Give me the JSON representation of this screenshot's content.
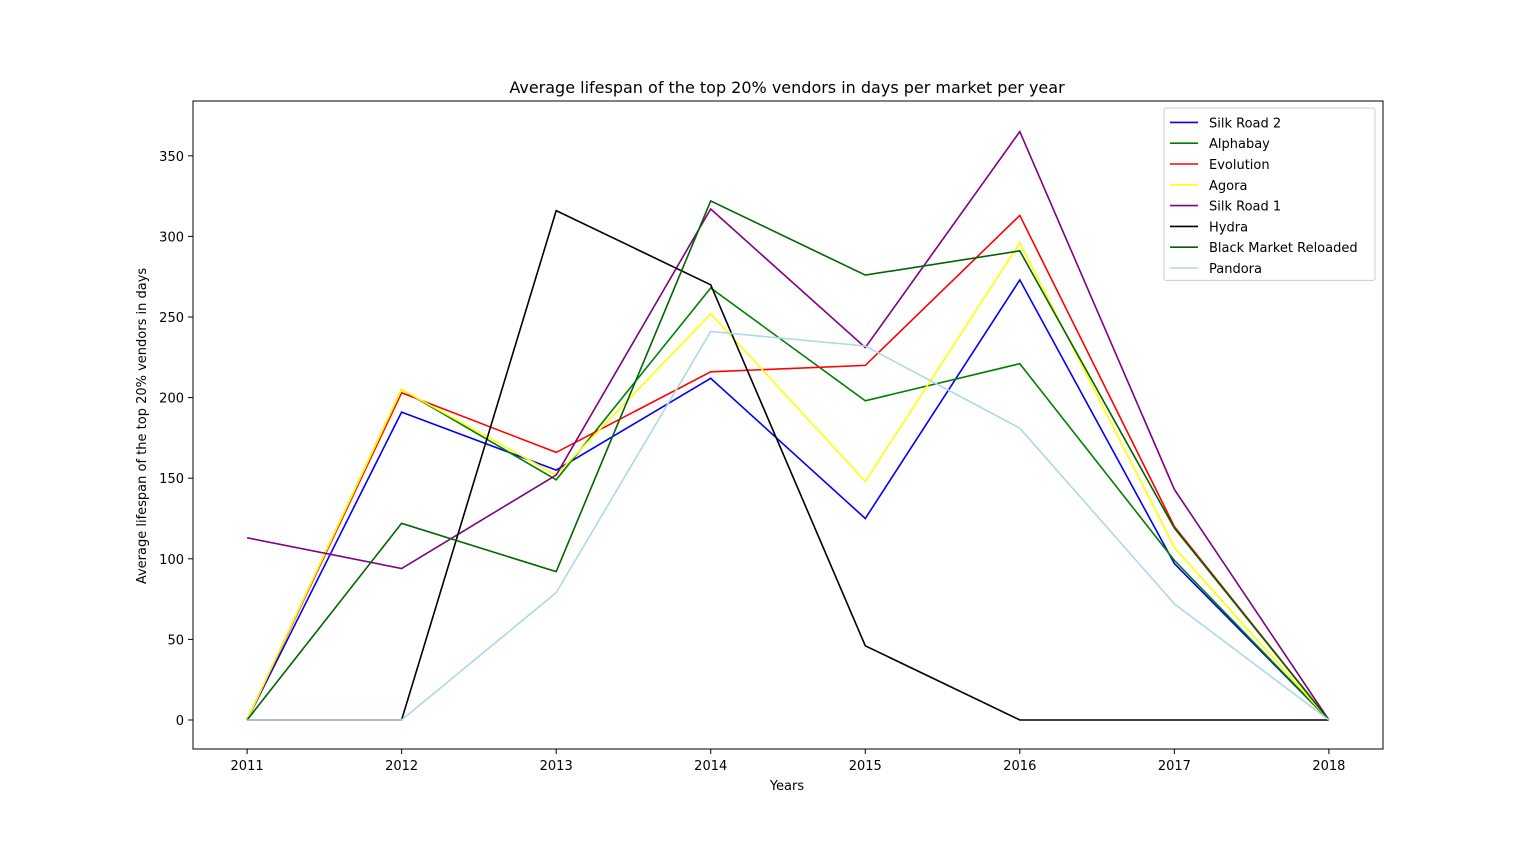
{
  "chart_data": {
    "type": "line",
    "title": "Average lifespan of the top 20% vendors in days per market per year",
    "xlabel": "Years",
    "ylabel": "Average lifespan of the top 20% vendors in days",
    "x": [
      2011,
      2012,
      2013,
      2014,
      2015,
      2016,
      2017,
      2018
    ],
    "x_tick_labels": [
      "2011",
      "2012",
      "2013",
      "2014",
      "2015",
      "2016",
      "2017",
      "2018"
    ],
    "y_ticks": [
      0,
      50,
      100,
      150,
      200,
      250,
      300,
      350
    ],
    "y_tick_labels": [
      "0",
      "50",
      "100",
      "150",
      "200",
      "250",
      "300",
      "350"
    ],
    "xlim": [
      2010.65,
      2018.35
    ],
    "ylim": [
      -18,
      384
    ],
    "grid": false,
    "legend_position": "upper-right",
    "series": [
      {
        "name": "Silk Road 2",
        "color": "#0000ff",
        "values": [
          0,
          191,
          155,
          212,
          125,
          273,
          97,
          0
        ]
      },
      {
        "name": "Alphabay",
        "color": "#008000",
        "values": [
          0,
          205,
          149,
          268,
          198,
          221,
          99,
          0
        ]
      },
      {
        "name": "Evolution",
        "color": "#ff0000",
        "values": [
          0,
          203,
          166,
          216,
          220,
          313,
          120,
          0
        ]
      },
      {
        "name": "Agora",
        "color": "#ffff00",
        "values": [
          0,
          205,
          152,
          252,
          148,
          296,
          107,
          0
        ]
      },
      {
        "name": "Silk Road 1",
        "color": "#800080",
        "values": [
          113,
          94,
          152,
          317,
          231,
          365,
          143,
          0
        ]
      },
      {
        "name": "Hydra",
        "color": "#000000",
        "values": [
          0,
          0,
          316,
          270,
          46,
          0,
          0,
          0
        ]
      },
      {
        "name": "Black Market Reloaded",
        "color": "#006400",
        "values": [
          0,
          122,
          92,
          322,
          276,
          291,
          119,
          0
        ]
      },
      {
        "name": "Pandora",
        "color": "#add8e6",
        "values": [
          0,
          0,
          79,
          241,
          232,
          181,
          72,
          0
        ]
      }
    ]
  }
}
